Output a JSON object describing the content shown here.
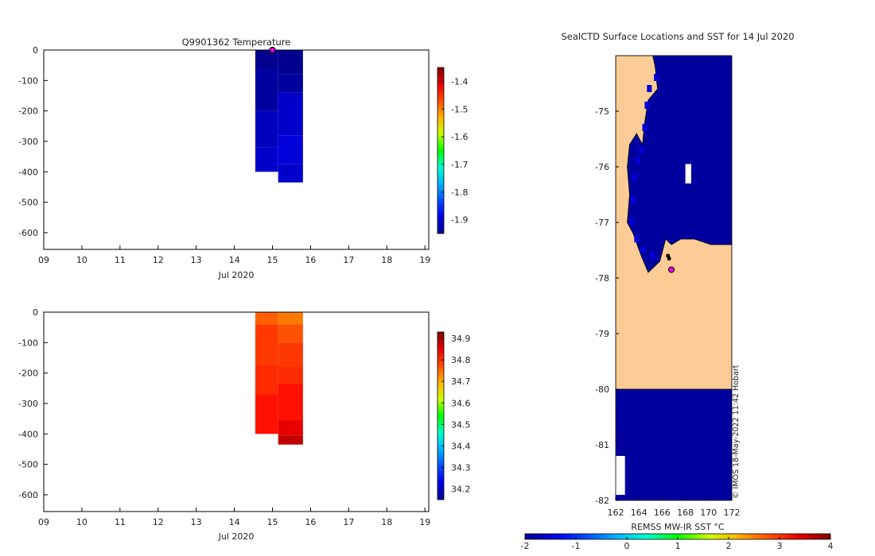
{
  "figure": {
    "copyright": "© IMOS 18-May-2022 11:42 Hobart"
  },
  "chart_data": [
    {
      "type": "heatmap",
      "title": "Q9901362  Temperature",
      "xlabel": "Jul 2020",
      "ylabel": "",
      "xlim": [
        9,
        19.1
      ],
      "ylim": [
        -655,
        0
      ],
      "x_ticks": [
        "09",
        "10",
        "11",
        "12",
        "13",
        "14",
        "15",
        "16",
        "17",
        "18",
        "19"
      ],
      "y_ticks": [
        0,
        -100,
        -200,
        -300,
        -400,
        -500,
        -600
      ],
      "colorbar": {
        "range": [
          -1.95,
          -1.35
        ],
        "ticks": [
          -1.4,
          -1.5,
          -1.6,
          -1.7,
          -1.8,
          -1.9
        ]
      },
      "marker": {
        "x": 15.0,
        "y": 0,
        "color": "#ee00ee"
      },
      "columns": [
        {
          "x_start": 14.55,
          "x_end": 15.15,
          "cells": [
            {
              "depth_top": 0,
              "depth_bottom": -60,
              "value": -1.95
            },
            {
              "depth_top": -60,
              "depth_bottom": -200,
              "value": -1.94
            },
            {
              "depth_top": -200,
              "depth_bottom": -320,
              "value": -1.92
            },
            {
              "depth_top": -320,
              "depth_bottom": -400,
              "value": -1.91
            }
          ]
        },
        {
          "x_start": 15.15,
          "x_end": 15.8,
          "cells": [
            {
              "depth_top": 0,
              "depth_bottom": -80,
              "value": -1.95
            },
            {
              "depth_top": -80,
              "depth_bottom": -140,
              "value": -1.94
            },
            {
              "depth_top": -140,
              "depth_bottom": -280,
              "value": -1.91
            },
            {
              "depth_top": -280,
              "depth_bottom": -375,
              "value": -1.9
            },
            {
              "depth_top": -375,
              "depth_bottom": -435,
              "value": -1.91
            }
          ]
        }
      ]
    },
    {
      "type": "heatmap",
      "title": "",
      "xlabel": "Jul 2020",
      "ylabel": "",
      "xlim": [
        9,
        19.1
      ],
      "ylim": [
        -655,
        0
      ],
      "x_ticks": [
        "09",
        "10",
        "11",
        "12",
        "13",
        "14",
        "15",
        "16",
        "17",
        "18",
        "19"
      ],
      "y_ticks": [
        0,
        -100,
        -200,
        -300,
        -400,
        -500,
        -600
      ],
      "colorbar": {
        "range": [
          34.15,
          34.93
        ],
        "ticks": [
          34.9,
          34.8,
          34.7,
          34.6,
          34.5,
          34.4,
          34.3,
          34.2
        ]
      },
      "columns": [
        {
          "x_start": 14.55,
          "x_end": 15.15,
          "cells": [
            {
              "depth_top": 0,
              "depth_bottom": -40,
              "value": 34.76
            },
            {
              "depth_top": -40,
              "depth_bottom": -170,
              "value": 34.79
            },
            {
              "depth_top": -170,
              "depth_bottom": -270,
              "value": 34.8
            },
            {
              "depth_top": -270,
              "depth_bottom": -400,
              "value": 34.82
            }
          ]
        },
        {
          "x_start": 15.15,
          "x_end": 15.8,
          "cells": [
            {
              "depth_top": 0,
              "depth_bottom": -40,
              "value": 34.74
            },
            {
              "depth_top": -40,
              "depth_bottom": -100,
              "value": 34.77
            },
            {
              "depth_top": -100,
              "depth_bottom": -180,
              "value": 34.79
            },
            {
              "depth_top": -180,
              "depth_bottom": -235,
              "value": 34.8
            },
            {
              "depth_top": -235,
              "depth_bottom": -355,
              "value": 34.82
            },
            {
              "depth_top": -355,
              "depth_bottom": -405,
              "value": 34.85
            },
            {
              "depth_top": -405,
              "depth_bottom": -435,
              "value": 34.88
            }
          ]
        }
      ]
    },
    {
      "type": "heatmap",
      "title": "SealCTD Surface Locations and SST for 14 Jul 2020",
      "xlabel": "REMSS MW-IR SST °C",
      "ylabel": "",
      "xlim": [
        162,
        172
      ],
      "ylim": [
        -82,
        -74
      ],
      "x_ticks": [
        162,
        164,
        166,
        168,
        170,
        172
      ],
      "y_ticks": [
        -75,
        -76,
        -77,
        -78,
        -79,
        -80,
        -81,
        -82
      ],
      "colorbar": {
        "range": [
          -2,
          4
        ],
        "ticks": [
          -2,
          -1,
          0,
          1,
          2,
          3,
          4
        ],
        "orientation": "horizontal"
      },
      "land_color": "#fccc96",
      "sst_typical": -1.9,
      "land_polygons": [
        [
          [
            162,
            -74
          ],
          [
            165.2,
            -74
          ],
          [
            165.4,
            -74.2
          ],
          [
            165.6,
            -74.6
          ],
          [
            164.8,
            -74.8
          ],
          [
            164.5,
            -75.2
          ],
          [
            164.3,
            -75.6
          ],
          [
            163.8,
            -75.4
          ],
          [
            163.2,
            -75.6
          ],
          [
            163.0,
            -76.0
          ],
          [
            163.2,
            -76.5
          ],
          [
            163.0,
            -77.0
          ],
          [
            163.5,
            -77.2
          ],
          [
            164.2,
            -77.6
          ],
          [
            164.8,
            -77.9
          ],
          [
            165.8,
            -77.7
          ],
          [
            166.3,
            -77.3
          ],
          [
            166.8,
            -77.4
          ],
          [
            167.6,
            -77.3
          ],
          [
            168.8,
            -77.3
          ],
          [
            170.2,
            -77.4
          ],
          [
            172,
            -77.4
          ],
          [
            172,
            -80
          ],
          [
            162,
            -80
          ]
        ]
      ],
      "white_patches": [
        [
          [
            168,
            -75.95
          ],
          [
            168.5,
            -75.95
          ],
          [
            168.5,
            -76.3
          ],
          [
            168,
            -76.3
          ]
        ],
        [
          [
            162,
            -81.2
          ],
          [
            162.8,
            -81.2
          ],
          [
            162.8,
            -81.9
          ],
          [
            162,
            -81.9
          ]
        ]
      ],
      "points": [
        {
          "lon": 166.8,
          "lat": -77.85,
          "color": "#ee00ee"
        },
        {
          "lon": 166.6,
          "lat": -77.65,
          "color": "#111111"
        },
        {
          "lon": 166.5,
          "lat": -77.6,
          "color": "#111111"
        }
      ]
    }
  ]
}
